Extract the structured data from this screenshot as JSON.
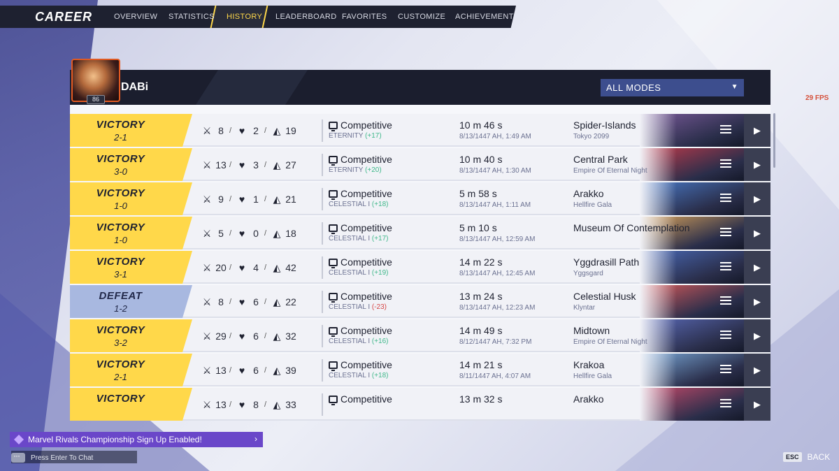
{
  "nav": {
    "title": "CAREER",
    "tabs": [
      "OVERVIEW",
      "STATISTICS",
      "HISTORY",
      "LEADERBOARD",
      "FAVORITES",
      "CUSTOMIZE",
      "ACHIEVEMENTS"
    ],
    "active_tab": "HISTORY"
  },
  "player": {
    "name": "DABi",
    "level": "86"
  },
  "filter": {
    "mode": "ALL MODES"
  },
  "fps": "29 FPS",
  "matches": [
    {
      "result": "VICTORY",
      "score": "2-1",
      "kills": "8",
      "deaths": "2",
      "assists": "19",
      "mode": "Competitive",
      "rank": "ETERNITY",
      "delta": "(+17)",
      "duration": "10 m 46 s",
      "date": "8/13/1447 AH, 1:49 AM",
      "map": "Spider-Islands",
      "region": "Tokyo 2099"
    },
    {
      "result": "VICTORY",
      "score": "3-0",
      "kills": "13",
      "deaths": "3",
      "assists": "27",
      "mode": "Competitive",
      "rank": "ETERNITY",
      "delta": "(+20)",
      "duration": "10 m 40 s",
      "date": "8/13/1447 AH, 1:30 AM",
      "map": "Central Park",
      "region": "Empire Of Eternal Night"
    },
    {
      "result": "VICTORY",
      "score": "1-0",
      "kills": "9",
      "deaths": "1",
      "assists": "21",
      "mode": "Competitive",
      "rank": "CELESTIAL I",
      "delta": "(+18)",
      "duration": "5 m 58 s",
      "date": "8/13/1447 AH, 1:11 AM",
      "map": "Arakko",
      "region": "Hellfire Gala"
    },
    {
      "result": "VICTORY",
      "score": "1-0",
      "kills": "5",
      "deaths": "0",
      "assists": "18",
      "mode": "Competitive",
      "rank": "CELESTIAL I",
      "delta": "(+17)",
      "duration": "5 m 10 s",
      "date": "8/13/1447 AH, 12:59 AM",
      "map": "Museum Of Contemplation",
      "region": ""
    },
    {
      "result": "VICTORY",
      "score": "3-1",
      "kills": "20",
      "deaths": "4",
      "assists": "42",
      "mode": "Competitive",
      "rank": "CELESTIAL I",
      "delta": "(+19)",
      "duration": "14 m 22 s",
      "date": "8/13/1447 AH, 12:45 AM",
      "map": "Yggdrasill Path",
      "region": "Yggsgard"
    },
    {
      "result": "DEFEAT",
      "score": "1-2",
      "kills": "8",
      "deaths": "6",
      "assists": "22",
      "mode": "Competitive",
      "rank": "CELESTIAL I",
      "delta": "(-23)",
      "duration": "13 m 24 s",
      "date": "8/13/1447 AH, 12:23 AM",
      "map": "Celestial Husk",
      "region": "Klyntar"
    },
    {
      "result": "VICTORY",
      "score": "3-2",
      "kills": "29",
      "deaths": "6",
      "assists": "32",
      "mode": "Competitive",
      "rank": "CELESTIAL I",
      "delta": "(+16)",
      "duration": "14 m 49 s",
      "date": "8/12/1447 AH, 7:32 PM",
      "map": "Midtown",
      "region": "Empire Of Eternal Night"
    },
    {
      "result": "VICTORY",
      "score": "2-1",
      "kills": "13",
      "deaths": "6",
      "assists": "39",
      "mode": "Competitive",
      "rank": "CELESTIAL I",
      "delta": "(+18)",
      "duration": "14 m 21 s",
      "date": "8/11/1447 AH, 4:07 AM",
      "map": "Krakoa",
      "region": "Hellfire Gala"
    },
    {
      "result": "VICTORY",
      "score": "",
      "kills": "13",
      "deaths": "8",
      "assists": "33",
      "mode": "Competitive",
      "rank": "",
      "delta": "",
      "duration": "13 m 32 s",
      "date": "",
      "map": "Arakko",
      "region": ""
    }
  ],
  "map_colors": [
    "#7a5a9a",
    "#c23a4a",
    "#4a7ac8",
    "#d8a25a",
    "#4a6ab8",
    "#d85a5a",
    "#5a6ab8",
    "#7aa8d8",
    "#c84a6a"
  ],
  "footer": {
    "notice": "Marvel Rivals Championship Sign Up Enabled!",
    "chat_hint": "Press Enter To Chat",
    "esc_key": "ESC",
    "back_label": "BACK"
  },
  "colors": {
    "victory": "#ffd84a",
    "defeat": "#a8b8e0",
    "gain": "#3fb88a",
    "loss": "#d64545",
    "accent_purple": "#6a47c9"
  }
}
